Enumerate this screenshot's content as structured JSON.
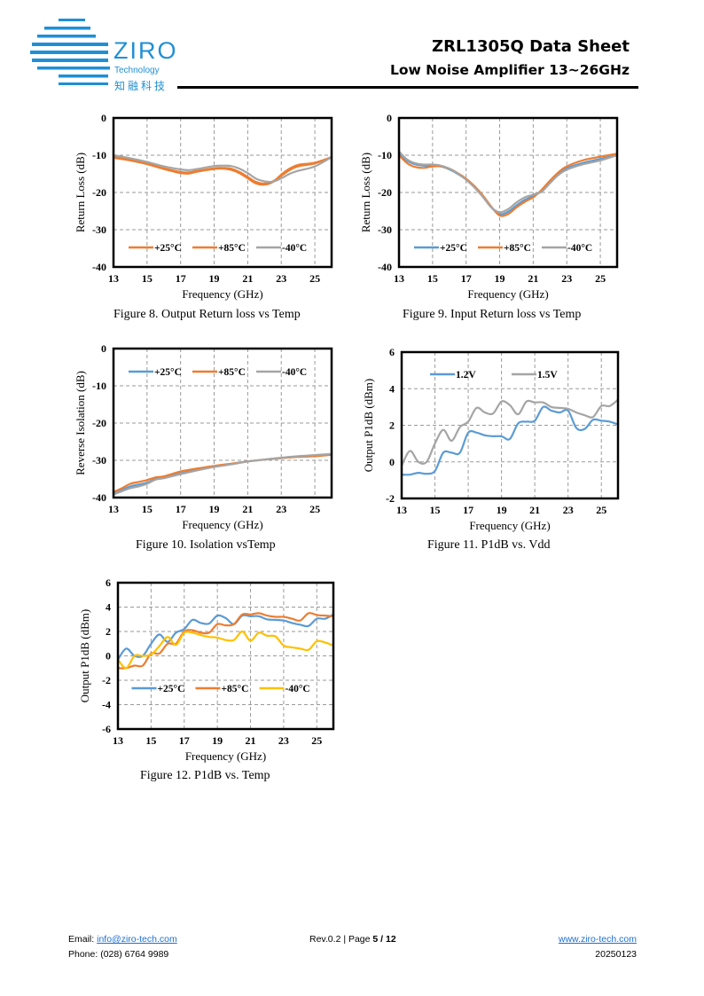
{
  "header": {
    "logo_word": "ZIRO",
    "logo_sub": "Technology",
    "logo_cn": "知融科技",
    "title": "ZRL1305Q Data Sheet",
    "subtitle": "Low Noise Amplifier 13~26GHz",
    "brand_color": "#1f8fd6"
  },
  "captions": {
    "fig8": "Figure 8. Output Return loss vs Temp",
    "fig9": "Figure 9. Input Return loss vs Temp",
    "fig10": "Figure 10. Isolation vsTemp",
    "fig11": "Figure 11. P1dB vs. Vdd",
    "fig12": "Figure 12. P1dB vs. Temp"
  },
  "footer": {
    "email_label": "Email:",
    "email": "info@ziro-tech.com",
    "phone_label": "Phone:",
    "phone": "(028) 6764 9989",
    "rev": "Rev.0.2 | Page ",
    "page": "5 / 12",
    "website": "www.ziro-tech.com",
    "date": "20250123"
  },
  "chart_data": [
    {
      "id": "fig8",
      "type": "line",
      "title": "Figure 8. Output Return loss vs Temp",
      "xlabel": "Frequency (GHz)",
      "ylabel": "Return Loss (dB)",
      "xlim": [
        13,
        26
      ],
      "ylim": [
        -40,
        0
      ],
      "xticks": [
        13,
        15,
        17,
        19,
        21,
        23,
        25
      ],
      "yticks": [
        0,
        -10,
        -20,
        -30,
        -40
      ],
      "grid": true,
      "legend": "bottom-center",
      "x": [
        13,
        14,
        15,
        16,
        17,
        17.5,
        18,
        19,
        19.5,
        20,
        20.5,
        21,
        21.5,
        22,
        22.5,
        23,
        23.5,
        24,
        25,
        26
      ],
      "series": [
        {
          "name": "+25°C",
          "color": "#ed7d31",
          "values": [
            -10.5,
            -11.2,
            -12.2,
            -13.5,
            -14.5,
            -14.6,
            -14.2,
            -13.5,
            -13.4,
            -13.6,
            -14.5,
            -15.8,
            -17.2,
            -17.6,
            -17.0,
            -15.5,
            -14.0,
            -13.0,
            -12.2,
            -10.5
          ]
        },
        {
          "name": "+85°C",
          "color": "#ed7d31",
          "values": [
            -10.7,
            -11.4,
            -12.4,
            -13.7,
            -14.8,
            -14.9,
            -14.4,
            -13.7,
            -13.6,
            -13.9,
            -14.8,
            -16.2,
            -17.6,
            -17.9,
            -17.2,
            -15.2,
            -13.6,
            -12.6,
            -12.0,
            -10.5
          ]
        },
        {
          "name": "-40°C",
          "color": "#a5a5a5",
          "values": [
            -10.0,
            -10.8,
            -11.8,
            -13.0,
            -13.8,
            -14.0,
            -13.7,
            -12.9,
            -12.8,
            -12.9,
            -13.6,
            -14.8,
            -16.3,
            -17.0,
            -17.1,
            -16.2,
            -15.0,
            -14.2,
            -13.0,
            -10.5
          ]
        }
      ]
    },
    {
      "id": "fig9",
      "type": "line",
      "title": "Figure 9. Input Return loss vs Temp",
      "xlabel": "Frequency (GHz)",
      "ylabel": "Return Loss (dB)",
      "xlim": [
        13,
        26
      ],
      "ylim": [
        -40,
        0
      ],
      "xticks": [
        13,
        15,
        17,
        19,
        21,
        23,
        25
      ],
      "yticks": [
        0,
        -10,
        -20,
        -30,
        -40
      ],
      "grid": true,
      "legend": "bottom-center",
      "x": [
        13,
        13.5,
        14,
        14.5,
        15,
        15.5,
        16,
        16.5,
        17,
        17.5,
        18,
        18.5,
        19,
        19.5,
        20,
        20.5,
        21,
        21.5,
        22,
        22.5,
        23,
        24,
        25,
        26
      ],
      "series": [
        {
          "name": "+25°C",
          "color": "#5b9bd5",
          "values": [
            -9.5,
            -11.5,
            -12.5,
            -12.8,
            -12.8,
            -13.0,
            -13.8,
            -15.0,
            -16.5,
            -18.5,
            -21.0,
            -24.0,
            -25.8,
            -25.2,
            -23.5,
            -22.0,
            -21.0,
            -19.5,
            -17.0,
            -15.0,
            -13.5,
            -12.0,
            -11.0,
            -10.0
          ]
        },
        {
          "name": "+85°C",
          "color": "#ed7d31",
          "values": [
            -10.0,
            -12.2,
            -13.2,
            -13.4,
            -13.0,
            -13.0,
            -13.6,
            -14.8,
            -16.3,
            -18.3,
            -20.8,
            -23.8,
            -26.2,
            -25.8,
            -24.0,
            -22.5,
            -21.3,
            -19.3,
            -16.8,
            -14.6,
            -13.0,
            -11.3,
            -10.4,
            -9.6
          ]
        },
        {
          "name": "-40°C",
          "color": "#a5a5a5",
          "values": [
            -9.0,
            -11.2,
            -12.2,
            -12.5,
            -12.5,
            -12.8,
            -13.6,
            -14.9,
            -16.6,
            -18.7,
            -21.2,
            -24.0,
            -25.3,
            -24.5,
            -22.7,
            -21.3,
            -20.6,
            -19.8,
            -17.5,
            -15.3,
            -13.9,
            -12.4,
            -11.4,
            -10.0
          ]
        }
      ]
    },
    {
      "id": "fig10",
      "type": "line",
      "title": "Figure 10. Isolation vsTemp",
      "xlabel": "Frequency (GHz)",
      "ylabel": "Reverse Isolation (dB)",
      "xlim": [
        13,
        26
      ],
      "ylim": [
        -40,
        0
      ],
      "xticks": [
        13,
        15,
        17,
        19,
        21,
        23,
        25
      ],
      "yticks": [
        0,
        -10,
        -20,
        -30,
        -40
      ],
      "grid": true,
      "legend": "top-center",
      "x": [
        13,
        13.5,
        14,
        14.5,
        15,
        15.5,
        16,
        17,
        18,
        19,
        20,
        21,
        22,
        23,
        24,
        25,
        26
      ],
      "series": [
        {
          "name": "+25°C",
          "color": "#5b9bd5",
          "values": [
            -39.0,
            -38.0,
            -37.0,
            -36.5,
            -36.0,
            -35.0,
            -34.5,
            -33.5,
            -32.5,
            -31.7,
            -31.0,
            -30.3,
            -29.8,
            -29.4,
            -29.0,
            -28.8,
            -28.5
          ]
        },
        {
          "name": "+85°C",
          "color": "#ed7d31",
          "values": [
            -38.5,
            -37.5,
            -36.3,
            -35.8,
            -35.3,
            -34.6,
            -34.3,
            -33.0,
            -32.2,
            -31.5,
            -30.9,
            -30.3,
            -29.8,
            -29.4,
            -29.1,
            -28.9,
            -28.5
          ]
        },
        {
          "name": "-40°C",
          "color": "#a5a5a5",
          "values": [
            -39.2,
            -38.3,
            -37.5,
            -37.0,
            -36.3,
            -35.2,
            -34.8,
            -33.7,
            -32.7,
            -31.8,
            -31.1,
            -30.3,
            -29.8,
            -29.3,
            -28.9,
            -28.6,
            -28.3
          ]
        }
      ]
    },
    {
      "id": "fig11",
      "type": "line",
      "title": "Figure 11. P1dB vs. Vdd",
      "xlabel": "Frequency (GHz)",
      "ylabel": "Output P1dB (dBm)",
      "xlim": [
        13,
        26
      ],
      "ylim": [
        -2,
        6
      ],
      "xticks": [
        13,
        15,
        17,
        19,
        21,
        23,
        25
      ],
      "yticks": [
        6,
        4,
        2,
        0,
        -2
      ],
      "grid": true,
      "legend": "top-center",
      "x": [
        13,
        13.5,
        14,
        14.5,
        15,
        15.5,
        16,
        16.5,
        17,
        17.5,
        18,
        18.5,
        19,
        19.5,
        20,
        20.5,
        21,
        21.5,
        22,
        22.5,
        23,
        23.5,
        24,
        24.5,
        25,
        25.5,
        26
      ],
      "series": [
        {
          "name": "1.2V",
          "color": "#5b9bd5",
          "values": [
            -0.7,
            -0.7,
            -0.6,
            -0.65,
            -0.5,
            0.5,
            0.5,
            0.5,
            1.6,
            1.6,
            1.45,
            1.4,
            1.4,
            1.25,
            2.1,
            2.2,
            2.25,
            3.0,
            2.8,
            2.7,
            2.8,
            1.85,
            1.8,
            2.3,
            2.25,
            2.2,
            2.05
          ]
        },
        {
          "name": "1.5V",
          "color": "#a5a5a5",
          "values": [
            -0.2,
            0.6,
            0.0,
            0.0,
            1.0,
            1.75,
            1.15,
            1.9,
            2.2,
            2.95,
            2.7,
            2.65,
            3.3,
            3.1,
            2.6,
            3.3,
            3.25,
            3.25,
            3.0,
            2.95,
            2.9,
            2.7,
            2.55,
            2.45,
            3.05,
            3.05,
            3.4
          ]
        }
      ]
    },
    {
      "id": "fig12",
      "type": "line",
      "title": "Figure 12. P1dB vs. Temp",
      "xlabel": "Frequency (GHz)",
      "ylabel": "Output P1dB (dBm)",
      "xlim": [
        13,
        26
      ],
      "ylim": [
        -6,
        6
      ],
      "xticks": [
        13,
        15,
        17,
        19,
        21,
        23,
        25
      ],
      "yticks": [
        6,
        4,
        2,
        0,
        -2,
        -4,
        -6
      ],
      "grid": true,
      "legend": "bottom-center",
      "x": [
        13,
        13.5,
        14,
        14.5,
        15,
        15.5,
        16,
        16.5,
        17,
        17.5,
        18,
        18.5,
        19,
        19.5,
        20,
        20.5,
        21,
        21.5,
        22,
        22.5,
        23,
        23.5,
        24,
        24.5,
        25,
        25.5,
        26
      ],
      "series": [
        {
          "name": "+25°C",
          "color": "#5b9bd5",
          "values": [
            -0.3,
            0.6,
            0.0,
            0.0,
            1.0,
            1.75,
            1.15,
            1.9,
            2.2,
            2.95,
            2.7,
            2.65,
            3.3,
            3.1,
            2.6,
            3.3,
            3.25,
            3.25,
            3.0,
            2.95,
            2.9,
            2.7,
            2.55,
            2.45,
            3.05,
            3.05,
            3.4
          ]
        },
        {
          "name": "+85°C",
          "color": "#ed7d31",
          "values": [
            -1.0,
            -1.0,
            -0.8,
            -0.8,
            0.2,
            0.2,
            1.0,
            1.0,
            2.0,
            2.1,
            1.9,
            1.9,
            2.6,
            2.5,
            2.6,
            3.4,
            3.4,
            3.5,
            3.3,
            3.2,
            3.2,
            3.05,
            2.9,
            3.5,
            3.35,
            3.3,
            3.25
          ]
        },
        {
          "name": "-40°C",
          "color": "#ffc000",
          "values": [
            -0.3,
            -1.0,
            0.0,
            0.0,
            0.1,
            0.8,
            1.55,
            0.9,
            1.9,
            1.9,
            1.7,
            1.55,
            1.5,
            1.3,
            1.3,
            2.0,
            1.25,
            1.9,
            1.65,
            1.6,
            0.85,
            0.7,
            0.6,
            0.5,
            1.2,
            1.1,
            0.85
          ]
        }
      ]
    }
  ]
}
